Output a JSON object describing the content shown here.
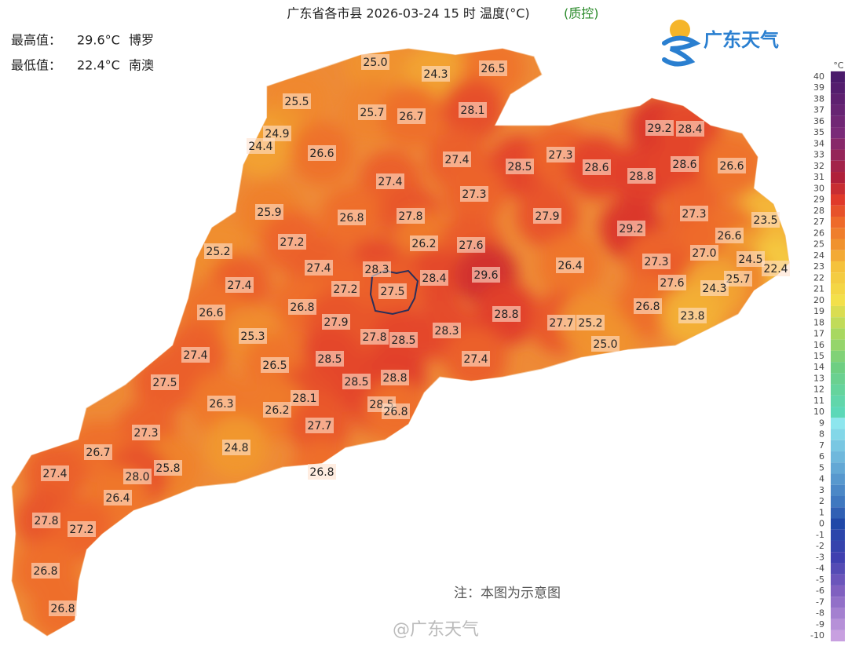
{
  "title": "广东省各市县 2026-03-24 15 时 温度(°C)",
  "title_note": "(质控)",
  "stats": [
    {
      "label": "最高值：",
      "value": "29.6°C",
      "place": "博罗"
    },
    {
      "label": "最低值：",
      "value": "22.4°C",
      "place": "南澳"
    }
  ],
  "logo": "广东天气",
  "note": "注：本图为示意图",
  "watermark": "@广东天气",
  "legend": {
    "unit": "°C",
    "ticks": [
      40,
      39,
      38,
      37,
      36,
      35,
      34,
      33,
      32,
      31,
      30,
      29,
      28,
      27,
      26,
      25,
      24,
      23,
      22,
      21,
      20,
      19,
      18,
      17,
      16,
      15,
      14,
      13,
      12,
      11,
      10,
      9,
      8,
      7,
      6,
      5,
      4,
      3,
      2,
      1,
      0,
      -1,
      -2,
      -3,
      -4,
      -5,
      -6,
      -7,
      -8,
      -9,
      -10
    ],
    "color_stops": [
      {
        "value": 40,
        "color": "#4b1a6b"
      },
      {
        "value": 35,
        "color": "#7a2a78"
      },
      {
        "value": 31,
        "color": "#b0203a"
      },
      {
        "value": 29,
        "color": "#e03a2a"
      },
      {
        "value": 27,
        "color": "#ee6a2a"
      },
      {
        "value": 25,
        "color": "#f0922e"
      },
      {
        "value": 23,
        "color": "#f5c23c"
      },
      {
        "value": 20,
        "color": "#f3e04a"
      },
      {
        "value": 17,
        "color": "#a8d860"
      },
      {
        "value": 14,
        "color": "#6ecf82"
      },
      {
        "value": 10,
        "color": "#5cd8b8"
      },
      {
        "value": 9,
        "color": "#8de6ee"
      },
      {
        "value": 6,
        "color": "#6fb8dc"
      },
      {
        "value": 2,
        "color": "#3f78c0"
      },
      {
        "value": 0,
        "color": "#2048a8"
      },
      {
        "value": -3,
        "color": "#4040b0"
      },
      {
        "value": -6,
        "color": "#8060c0"
      },
      {
        "value": -10,
        "color": "#c8a0e0"
      }
    ]
  },
  "stations": [
    "25.0",
    "24.3",
    "26.5",
    "25.5",
    "25.7",
    "26.7",
    "28.1",
    "24.9",
    "24.4",
    "26.6",
    "27.4",
    "29.2",
    "28.4",
    "28.5",
    "27.3",
    "28.6",
    "28.8",
    "28.6",
    "26.6",
    "27.4",
    "27.3",
    "25.9",
    "26.8",
    "27.8",
    "27.9",
    "29.2",
    "27.3",
    "23.5",
    "27.2",
    "26.2",
    "27.6",
    "26.6",
    "25.2",
    "27.4",
    "28.3",
    "27.0",
    "24.5",
    "26.4",
    "27.3",
    "22.4",
    "28.4",
    "29.6",
    "27.4",
    "27.2",
    "27.5",
    "27.6",
    "25.7",
    "24.3",
    "26.8",
    "26.6",
    "27.9",
    "28.8",
    "26.8",
    "23.8",
    "27.7",
    "25.2",
    "28.3",
    "25.3",
    "27.8",
    "28.5",
    "25.0",
    "27.4",
    "28.5",
    "27.4",
    "26.5",
    "28.5",
    "28.8",
    "27.5",
    "28.1",
    "28.5",
    "26.8",
    "26.3",
    "26.2",
    "27.7",
    "27.3",
    "24.8",
    "26.7",
    "25.8",
    "26.8",
    "27.4",
    "28.0",
    "26.4",
    "27.8",
    "27.2",
    "26.8",
    "26.8"
  ]
}
